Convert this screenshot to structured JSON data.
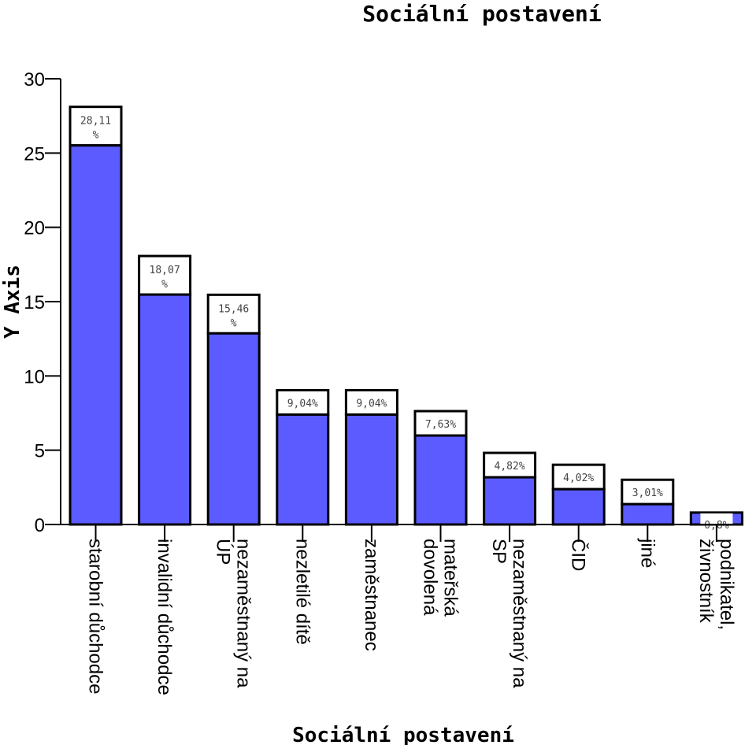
{
  "chart_data": {
    "type": "bar",
    "title": "Sociální postavení",
    "xlabel": "Sociální postavení",
    "ylabel": "Y Axis",
    "ylim": [
      0,
      30
    ],
    "yticks": [
      "0",
      "5",
      "10",
      "15",
      "20",
      "25",
      "30"
    ],
    "bar_color": "#5b5bff",
    "categories": [
      [
        "starobní důchodce"
      ],
      [
        "invalidní důchodce"
      ],
      [
        "nezaměstnaný na",
        "ÚP"
      ],
      [
        "nezletilé dítě"
      ],
      [
        "zaměstnanec"
      ],
      [
        "mateřská",
        "dovolená"
      ],
      [
        "nezaměstnaný na",
        "SP"
      ],
      [
        "ČID"
      ],
      [
        "jiné"
      ],
      [
        "podnikatel,",
        "živnostník"
      ]
    ],
    "values": [
      28.11,
      18.07,
      15.46,
      9.04,
      9.04,
      7.63,
      4.82,
      4.02,
      3.01,
      0.8
    ],
    "data_labels": [
      [
        "28,11",
        "%"
      ],
      [
        "18,07",
        "%"
      ],
      [
        "15,46",
        "%"
      ],
      [
        "9,04%"
      ],
      [
        "9,04%"
      ],
      [
        "7,63%"
      ],
      [
        "4,82%"
      ],
      [
        "4,02%"
      ],
      [
        "3,01%"
      ],
      [
        "0,8%"
      ]
    ],
    "grid": false,
    "legend": "none"
  }
}
